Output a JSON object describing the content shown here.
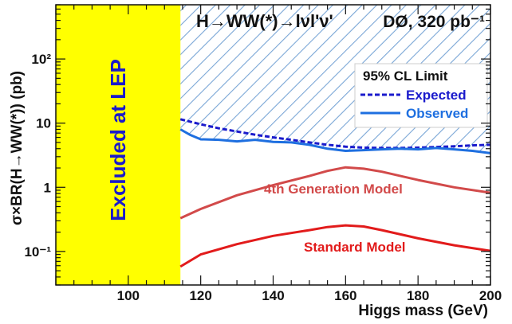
{
  "chart_data": {
    "type": "line",
    "title": "H→WW(*)→lνl'ν'",
    "experiment_label": "DØ, 320 pb⁻¹",
    "xlabel": "Higgs mass (GeV)",
    "ylabel": "σ×BR(H→WW(*)) (pb)",
    "xlim": [
      80,
      200
    ],
    "ylim": [
      0.03,
      700
    ],
    "yscale": "log",
    "x_ticks": [
      "100",
      "120",
      "140",
      "160",
      "180",
      "200"
    ],
    "y_ticks": [
      "10⁻¹",
      "1",
      "10",
      "10²"
    ],
    "grid": false,
    "legend": {
      "title": "95% CL Limit",
      "placement": "top-right",
      "entries": [
        "Expected",
        "Observed"
      ]
    },
    "excluded_region": {
      "label": "Excluded at LEP",
      "x_from": 80,
      "x_to": 114.4,
      "color": "#ffff00"
    },
    "series": [
      {
        "name": "Expected",
        "color": "#1a1acc",
        "style": "dashed",
        "x": [
          114.4,
          120,
          125,
          130,
          135,
          140,
          145,
          150,
          155,
          160,
          165,
          170,
          175,
          180,
          185,
          190,
          195,
          200
        ],
        "values": [
          11.5,
          9.6,
          8.3,
          7.4,
          6.6,
          6.0,
          5.5,
          5.0,
          4.6,
          4.3,
          4.15,
          4.1,
          4.1,
          4.15,
          4.25,
          4.35,
          4.5,
          4.6
        ]
      },
      {
        "name": "Observed",
        "color": "#1e6fe0",
        "style": "solid",
        "x": [
          114.4,
          117,
          120,
          125,
          130,
          135,
          140,
          145,
          150,
          155,
          160,
          165,
          170,
          175,
          180,
          185,
          190,
          195,
          200
        ],
        "values": [
          8.0,
          6.6,
          5.6,
          5.5,
          5.2,
          5.5,
          5.1,
          5.0,
          4.6,
          4.0,
          3.7,
          3.8,
          3.9,
          4.0,
          3.9,
          4.1,
          3.9,
          3.7,
          3.4
        ]
      },
      {
        "name": "4th Generation Model",
        "color": "#d24a4a",
        "style": "solid",
        "x": [
          114.4,
          120,
          130,
          140,
          150,
          155,
          160,
          165,
          170,
          180,
          190,
          200
        ],
        "values": [
          0.33,
          0.46,
          0.75,
          1.08,
          1.5,
          1.8,
          2.05,
          1.95,
          1.75,
          1.3,
          1.0,
          0.82
        ]
      },
      {
        "name": "Standard Model",
        "color": "#e21b1b",
        "style": "solid",
        "x": [
          114.4,
          120,
          130,
          140,
          150,
          155,
          160,
          165,
          170,
          180,
          190,
          200
        ],
        "values": [
          0.058,
          0.09,
          0.13,
          0.175,
          0.215,
          0.24,
          0.255,
          0.245,
          0.215,
          0.16,
          0.125,
          0.102
        ]
      }
    ],
    "curve_labels": [
      "4th Generation Model",
      "Standard Model"
    ]
  },
  "colors": {
    "lep_band": "#ffff00",
    "hatch": "#7aa6d6",
    "expected": "#1a1acc",
    "observed": "#1e6fe0",
    "fourth_gen": "#d24a4a",
    "standard_model": "#e21b1b"
  }
}
